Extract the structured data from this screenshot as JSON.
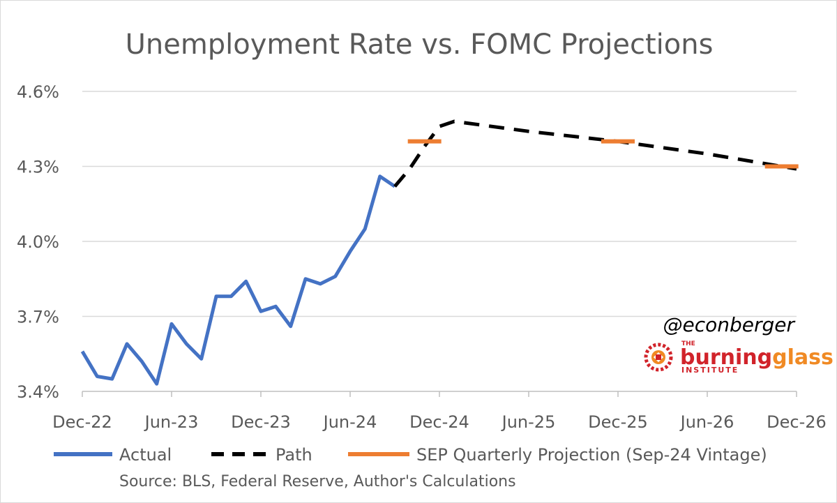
{
  "chart_data": {
    "type": "line",
    "title": "Unemployment Rate vs. FOMC Projections",
    "xlabel": "",
    "ylabel": "",
    "ylim": [
      3.4,
      4.6
    ],
    "y_ticks": [
      "3.4%",
      "3.7%",
      "4.0%",
      "4.3%",
      "4.6%"
    ],
    "y_tick_values": [
      3.4,
      3.7,
      4.0,
      4.3,
      4.6
    ],
    "x_ticks": [
      "Dec-22",
      "Jun-23",
      "Dec-23",
      "Jun-24",
      "Dec-24",
      "Jun-25",
      "Dec-25",
      "Jun-26",
      "Dec-26"
    ],
    "x_tick_months": [
      0,
      6,
      12,
      18,
      24,
      30,
      36,
      42,
      48
    ],
    "grid": "horizontal",
    "legend_position": "bottom",
    "series": [
      {
        "name": "Actual",
        "style": "solid",
        "color": "#4472c4",
        "x": [
          0,
          1,
          2,
          3,
          4,
          5,
          6,
          7,
          8,
          9,
          10,
          11,
          12,
          13,
          14,
          15,
          16,
          17,
          18,
          19,
          20,
          21
        ],
        "y": [
          3.56,
          3.46,
          3.45,
          3.59,
          3.52,
          3.43,
          3.67,
          3.59,
          3.53,
          3.78,
          3.78,
          3.84,
          3.72,
          3.74,
          3.66,
          3.85,
          3.83,
          3.86,
          3.96,
          4.05,
          4.26,
          4.22
        ]
      },
      {
        "name": "Path",
        "style": "dashed",
        "color": "#000000",
        "x": [
          21,
          22,
          23,
          24,
          25,
          30,
          36,
          42,
          48
        ],
        "y": [
          4.22,
          4.29,
          4.38,
          4.46,
          4.48,
          4.44,
          4.4,
          4.35,
          4.29
        ]
      },
      {
        "name": "SEP Quarterly Projection (Sep-24 Vintage)",
        "style": "segments",
        "color": "#ed7d31",
        "x": [
          23,
          36,
          47
        ],
        "y": [
          4.4,
          4.4,
          4.3
        ]
      }
    ],
    "source_note": "Source: BLS, Federal Reserve, Author's Calculations"
  },
  "watermark": {
    "handle": "@econberger",
    "brand_the": "THE",
    "brand_word_1": "burning",
    "brand_word_2": "glass",
    "brand_sub": "INSTITUTE"
  },
  "colors": {
    "actual": "#4472c4",
    "path": "#000000",
    "sep": "#ed7d31",
    "grid": "#d9d9d9",
    "text": "#595959",
    "brand_red": "#d1232a",
    "brand_orange": "#f08a24"
  }
}
